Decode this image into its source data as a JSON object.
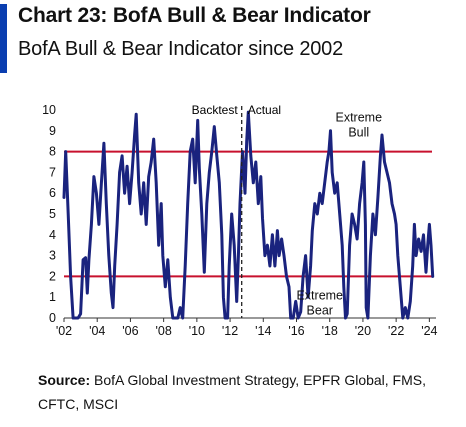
{
  "header": {
    "title": "Chart 23: BofA Bull & Bear Indicator",
    "subtitle": "BofA Bull & Bear Indicator since 2002"
  },
  "source": {
    "label": "Source:",
    "text": "BofA Global Investment Strategy, EPFR Global, FMS, CFTC, MSCI"
  },
  "colors": {
    "accent": "#0a3eb0",
    "series": "#1a237e",
    "threshold": "#c8102e",
    "divider": "#222222"
  },
  "chart_data": {
    "type": "line",
    "title": "",
    "xlabel": "",
    "ylabel": "",
    "xlim": [
      2002.0,
      2024.4
    ],
    "ylim": [
      0,
      10
    ],
    "grid": false,
    "xticks": [
      {
        "value": 2002,
        "label": "'02"
      },
      {
        "value": 2004,
        "label": "'04"
      },
      {
        "value": 2006,
        "label": "'06"
      },
      {
        "value": 2008,
        "label": "'08"
      },
      {
        "value": 2010,
        "label": "'10"
      },
      {
        "value": 2012,
        "label": "'12"
      },
      {
        "value": 2014,
        "label": "'14"
      },
      {
        "value": 2016,
        "label": "'16"
      },
      {
        "value": 2018,
        "label": "'18"
      },
      {
        "value": 2020,
        "label": "'20"
      },
      {
        "value": 2022,
        "label": "'22"
      },
      {
        "value": 2024,
        "label": "'24"
      }
    ],
    "yticks": [
      0,
      1,
      2,
      3,
      4,
      5,
      6,
      7,
      8,
      9,
      10
    ],
    "reference_lines": [
      {
        "axis": "y",
        "value": 8,
        "label": "Extreme Bull"
      },
      {
        "axis": "y",
        "value": 2,
        "label": "Extreme Bear"
      }
    ],
    "divider": {
      "x": 2012.7,
      "left_label": "Backtest",
      "right_label": "Actual"
    },
    "series": [
      {
        "values": [
          [
            2002.0,
            5.8
          ],
          [
            2002.1,
            8.0
          ],
          [
            2002.25,
            5.0
          ],
          [
            2002.4,
            2.0
          ],
          [
            2002.55,
            0.0
          ],
          [
            2002.7,
            0.0
          ],
          [
            2002.85,
            0.0
          ],
          [
            2003.0,
            0.2
          ],
          [
            2003.15,
            2.8
          ],
          [
            2003.3,
            2.9
          ],
          [
            2003.4,
            1.2
          ],
          [
            2003.5,
            2.8
          ],
          [
            2003.65,
            4.5
          ],
          [
            2003.8,
            6.8
          ],
          [
            2003.95,
            6.0
          ],
          [
            2004.1,
            4.5
          ],
          [
            2004.25,
            6.5
          ],
          [
            2004.4,
            8.4
          ],
          [
            2004.55,
            5.5
          ],
          [
            2004.7,
            3.0
          ],
          [
            2004.85,
            1.2
          ],
          [
            2004.95,
            0.5
          ],
          [
            2005.05,
            2.5
          ],
          [
            2005.2,
            4.5
          ],
          [
            2005.35,
            7.0
          ],
          [
            2005.5,
            7.8
          ],
          [
            2005.65,
            6.0
          ],
          [
            2005.8,
            7.3
          ],
          [
            2005.95,
            5.5
          ],
          [
            2006.1,
            7.0
          ],
          [
            2006.25,
            8.8
          ],
          [
            2006.35,
            9.8
          ],
          [
            2006.5,
            6.5
          ],
          [
            2006.65,
            5.0
          ],
          [
            2006.8,
            6.5
          ],
          [
            2006.95,
            4.5
          ],
          [
            2007.1,
            6.8
          ],
          [
            2007.25,
            7.5
          ],
          [
            2007.4,
            8.6
          ],
          [
            2007.55,
            6.5
          ],
          [
            2007.7,
            3.5
          ],
          [
            2007.85,
            5.5
          ],
          [
            2007.95,
            3.0
          ],
          [
            2008.1,
            1.5
          ],
          [
            2008.25,
            2.8
          ],
          [
            2008.4,
            1.0
          ],
          [
            2008.55,
            0.0
          ],
          [
            2008.7,
            0.0
          ],
          [
            2008.85,
            0.0
          ],
          [
            2009.0,
            0.5
          ],
          [
            2009.15,
            0.0
          ],
          [
            2009.3,
            2.5
          ],
          [
            2009.45,
            5.5
          ],
          [
            2009.6,
            8.0
          ],
          [
            2009.75,
            8.6
          ],
          [
            2009.9,
            6.5
          ],
          [
            2010.05,
            9.5
          ],
          [
            2010.15,
            7.2
          ],
          [
            2010.3,
            5.0
          ],
          [
            2010.45,
            2.2
          ],
          [
            2010.6,
            5.5
          ],
          [
            2010.75,
            7.0
          ],
          [
            2010.9,
            8.0
          ],
          [
            2011.05,
            9.2
          ],
          [
            2011.2,
            7.8
          ],
          [
            2011.35,
            6.5
          ],
          [
            2011.5,
            4.0
          ],
          [
            2011.6,
            1.0
          ],
          [
            2011.7,
            0.0
          ],
          [
            2011.85,
            0.0
          ],
          [
            2011.95,
            2.5
          ],
          [
            2012.1,
            5.0
          ],
          [
            2012.25,
            3.5
          ],
          [
            2012.4,
            0.8
          ],
          [
            2012.5,
            3.0
          ],
          [
            2012.6,
            5.5
          ],
          [
            2012.75,
            8.0
          ],
          [
            2012.9,
            6.0
          ],
          [
            2013.0,
            8.5
          ],
          [
            2013.1,
            9.9
          ],
          [
            2013.25,
            7.8
          ],
          [
            2013.4,
            6.5
          ],
          [
            2013.55,
            7.5
          ],
          [
            2013.7,
            5.5
          ],
          [
            2013.85,
            6.8
          ],
          [
            2013.95,
            4.8
          ],
          [
            2014.1,
            3.0
          ],
          [
            2014.25,
            3.5
          ],
          [
            2014.4,
            2.5
          ],
          [
            2014.55,
            4.0
          ],
          [
            2014.7,
            2.5
          ],
          [
            2014.85,
            4.2
          ],
          [
            2014.95,
            3.0
          ],
          [
            2015.1,
            3.8
          ],
          [
            2015.25,
            3.0
          ],
          [
            2015.4,
            2.0
          ],
          [
            2015.55,
            1.5
          ],
          [
            2015.65,
            0.0
          ],
          [
            2015.8,
            0.0
          ],
          [
            2015.95,
            0.8
          ],
          [
            2016.1,
            0.0
          ],
          [
            2016.25,
            0.3
          ],
          [
            2016.4,
            2.0
          ],
          [
            2016.55,
            3.0
          ],
          [
            2016.7,
            1.0
          ],
          [
            2016.85,
            2.5
          ],
          [
            2016.95,
            4.2
          ],
          [
            2017.1,
            5.5
          ],
          [
            2017.25,
            5.0
          ],
          [
            2017.4,
            6.0
          ],
          [
            2017.55,
            5.5
          ],
          [
            2017.7,
            6.5
          ],
          [
            2017.85,
            7.5
          ],
          [
            2017.95,
            8.0
          ],
          [
            2018.05,
            9.0
          ],
          [
            2018.15,
            7.0
          ],
          [
            2018.3,
            6.0
          ],
          [
            2018.45,
            6.5
          ],
          [
            2018.6,
            5.0
          ],
          [
            2018.75,
            3.5
          ],
          [
            2018.85,
            1.5
          ],
          [
            2018.95,
            0.0
          ],
          [
            2019.05,
            0.2
          ],
          [
            2019.2,
            3.5
          ],
          [
            2019.35,
            5.0
          ],
          [
            2019.5,
            4.5
          ],
          [
            2019.65,
            3.8
          ],
          [
            2019.8,
            5.5
          ],
          [
            2019.95,
            6.5
          ],
          [
            2020.05,
            7.5
          ],
          [
            2020.15,
            4.5
          ],
          [
            2020.2,
            0.5
          ],
          [
            2020.3,
            0.0
          ],
          [
            2020.45,
            3.0
          ],
          [
            2020.6,
            5.0
          ],
          [
            2020.75,
            4.0
          ],
          [
            2020.9,
            5.8
          ],
          [
            2021.05,
            7.8
          ],
          [
            2021.15,
            8.8
          ],
          [
            2021.3,
            7.5
          ],
          [
            2021.45,
            7.0
          ],
          [
            2021.6,
            6.5
          ],
          [
            2021.75,
            5.5
          ],
          [
            2021.9,
            5.0
          ],
          [
            2022.0,
            4.5
          ],
          [
            2022.1,
            3.0
          ],
          [
            2022.25,
            1.5
          ],
          [
            2022.4,
            0.0
          ],
          [
            2022.55,
            0.5
          ],
          [
            2022.7,
            0.0
          ],
          [
            2022.85,
            0.8
          ],
          [
            2023.0,
            2.5
          ],
          [
            2023.1,
            4.5
          ],
          [
            2023.2,
            3.0
          ],
          [
            2023.35,
            3.8
          ],
          [
            2023.5,
            3.2
          ],
          [
            2023.65,
            4.0
          ],
          [
            2023.8,
            2.2
          ],
          [
            2023.9,
            3.5
          ],
          [
            2024.0,
            4.5
          ],
          [
            2024.1,
            3.5
          ],
          [
            2024.2,
            2.0
          ]
        ]
      }
    ]
  }
}
